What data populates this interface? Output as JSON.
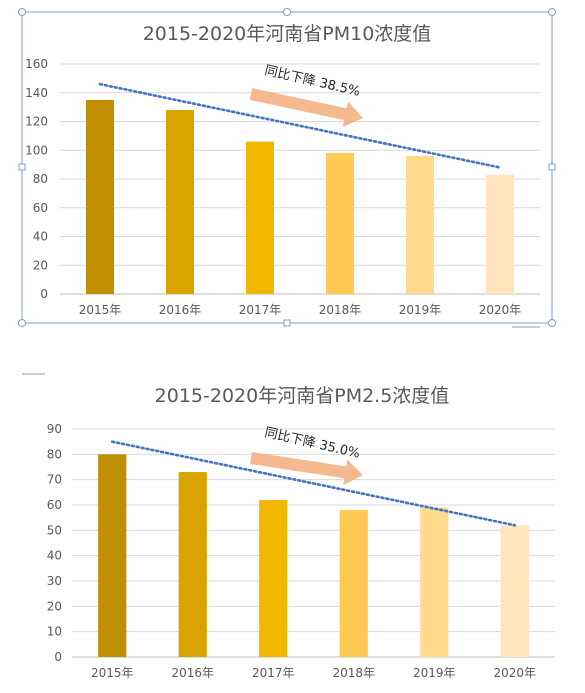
{
  "chart_data": [
    {
      "type": "bar",
      "title": "2015-2020年河南省PM10浓度值",
      "categories": [
        "2015年",
        "2016年",
        "2017年",
        "2018年",
        "2019年",
        "2020年"
      ],
      "values": [
        135,
        128,
        106,
        98,
        96,
        83
      ],
      "ylim": [
        0,
        160
      ],
      "yticks": [
        0,
        20,
        40,
        60,
        80,
        100,
        120,
        140,
        160
      ],
      "ytick_labels": [
        "0",
        "20",
        "40",
        "60",
        "80",
        "100",
        "120",
        "140",
        "160"
      ],
      "bar_colors": [
        "#bf8f00",
        "#d9a300",
        "#f2b800",
        "#ffc955",
        "#ffd98c",
        "#ffe4bc"
      ],
      "grid": true,
      "trendline": {
        "start": 146,
        "end": 88,
        "color": "#4472c4",
        "style": "dotted"
      },
      "annotation": "同比下降 38.5%",
      "arrow_color": "#f4b183"
    },
    {
      "type": "bar",
      "title": "2015-2020年河南省PM2.5浓度值",
      "categories": [
        "2015年",
        "2016年",
        "2017年",
        "2018年",
        "2019年",
        "2020年"
      ],
      "values": [
        80,
        73,
        62,
        58,
        59,
        52
      ],
      "ylim": [
        0,
        90
      ],
      "yticks": [
        0,
        10,
        20,
        30,
        40,
        50,
        60,
        70,
        80,
        90
      ],
      "ytick_labels": [
        "0",
        "10",
        "20",
        "30",
        "40",
        "50",
        "60",
        "70",
        "80",
        "90"
      ],
      "bar_colors": [
        "#bf8f00",
        "#d9a300",
        "#f2b800",
        "#ffc955",
        "#ffd98c",
        "#ffe4bc"
      ],
      "grid": true,
      "trendline": {
        "start": 85,
        "end": 52,
        "color": "#4472c4",
        "style": "dotted"
      },
      "annotation": "同比下降 35.0%",
      "arrow_color": "#f4b183"
    }
  ]
}
